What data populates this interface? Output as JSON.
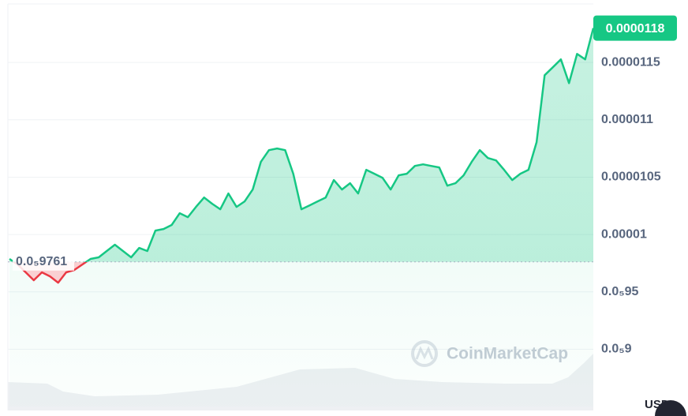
{
  "chart_data": {
    "type": "line",
    "values": [
      9.787e-06,
      9.739e-06,
      9.67e-06,
      9.601e-06,
      9.67e-06,
      9.635e-06,
      9.58e-06,
      9.67e-06,
      9.691e-06,
      9.739e-06,
      9.787e-06,
      9.801e-06,
      9.856e-06,
      9.911e-06,
      9.856e-06,
      9.801e-06,
      9.883e-06,
      9.856e-06,
      1.0034e-05,
      1.0048e-05,
      1.0083e-05,
      1.0186e-05,
      1.0151e-05,
      1.0241e-05,
      1.0323e-05,
      1.0268e-05,
      1.022e-05,
      1.0358e-05,
      1.0241e-05,
      1.0289e-05,
      1.0392e-05,
      1.0633e-05,
      1.0736e-05,
      1.075e-05,
      1.0736e-05,
      1.053e-05,
      1.022e-05,
      1.0254e-05,
      1.0289e-05,
      1.0323e-05,
      1.0475e-05,
      1.0392e-05,
      1.0447e-05,
      1.0358e-05,
      1.0564e-05,
      1.053e-05,
      1.0495e-05,
      1.0392e-05,
      1.0516e-05,
      1.053e-05,
      1.0598e-05,
      1.0612e-05,
      1.0598e-05,
      1.0585e-05,
      1.0426e-05,
      1.0447e-05,
      1.0516e-05,
      1.0633e-05,
      1.0736e-05,
      1.0667e-05,
      1.0646e-05,
      1.0564e-05,
      1.0475e-05,
      1.053e-05,
      1.0564e-05,
      1.0805e-05,
      1.1389e-05,
      1.1458e-05,
      1.1527e-05,
      1.132e-05,
      1.1575e-05,
      1.1527e-05,
      1.18e-05
    ],
    "up_color": "#16c784",
    "down_color": "#ea3943",
    "reference_price": {
      "value": 9.761e-06,
      "label": "0.0₅9761"
    },
    "last_price": 1.18e-05,
    "ylim": [
      8.5e-06,
      1.21e-05
    ],
    "yticks": [
      1.15e-05,
      1.1e-05,
      1.05e-05,
      1e-05,
      {
        "value": 9.5e-06,
        "label": "0.0₅95"
      },
      {
        "value": 9e-06,
        "label": "0.0₅9"
      }
    ],
    "grid": true,
    "watermark": "CoinMarketCap",
    "currency": "USD"
  }
}
